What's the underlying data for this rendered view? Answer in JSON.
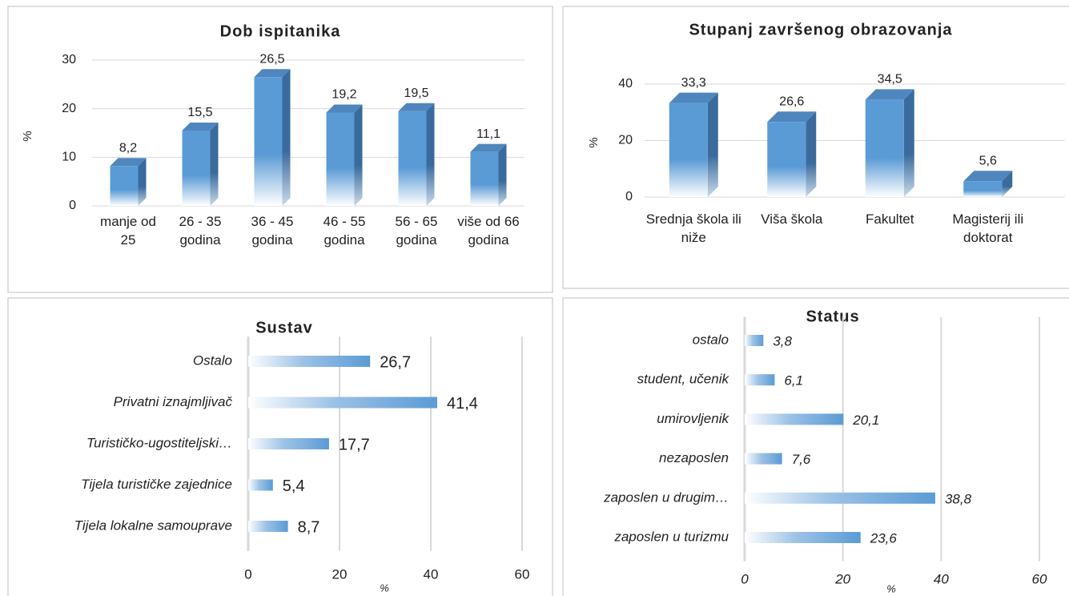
{
  "chart_data": [
    {
      "type": "bar3d",
      "title": "Dob ispitanika",
      "y_label": "%",
      "categories": [
        "manje od 25",
        "26 - 35 godina",
        "36 - 45 godina",
        "46 - 55 godina",
        "56 - 65 godina",
        "više od 66 godina"
      ],
      "values": [
        8.2,
        15.5,
        26.5,
        19.2,
        19.5,
        11.1
      ],
      "value_labels": [
        "8,2",
        "15,5",
        "26,5",
        "19,2",
        "19,5",
        "11,1"
      ],
      "color": "#5b9bd5",
      "ylim": [
        0,
        30
      ],
      "yticks": [
        0,
        10,
        20,
        30
      ],
      "grid": true
    },
    {
      "type": "bar3d",
      "title": "Stupanj završenog obrazovanja",
      "y_label": "%",
      "categories": [
        "Srednja škola ili niže",
        "Viša škola",
        "Fakultet",
        "Magisterij ili doktorat"
      ],
      "values": [
        33.3,
        26.6,
        34.5,
        5.6
      ],
      "value_labels": [
        "33,3",
        "26,6",
        "34,5",
        "5,6"
      ],
      "color": "#5b9bd5",
      "ylim": [
        0,
        40
      ],
      "yticks": [
        0,
        20,
        40
      ],
      "grid": true
    },
    {
      "type": "barh",
      "title": "Sustav",
      "x_label": "%",
      "categories": [
        "Ostalo",
        "Privatni iznajmljivač",
        "Turističko-ugostiteljski…",
        "Tijela turističke zajednice",
        "Tijela lokalne samouprave"
      ],
      "values": [
        26.7,
        41.4,
        17.7,
        5.4,
        8.7
      ],
      "value_labels": [
        "26,7",
        "41,4",
        "17,7",
        "5,4",
        "8,7"
      ],
      "color": "#5b9bd5",
      "xlim": [
        0,
        60
      ],
      "xticks": [
        0,
        20,
        40,
        60
      ],
      "grid": true
    },
    {
      "type": "barh",
      "title": "Status",
      "x_label": "%",
      "categories": [
        "ostalo",
        "student, učenik",
        "umirovljenik",
        "nezaposlen",
        "zaposlen u drugim…",
        "zaposlen u turizmu"
      ],
      "values": [
        3.8,
        6.1,
        20.1,
        7.6,
        38.8,
        23.6
      ],
      "value_labels": [
        "3,8",
        "6,1",
        "20,1",
        "7,6",
        "38,8",
        "23,6"
      ],
      "color": "#5b9bd5",
      "xlim": [
        0,
        60
      ],
      "xticks": [
        0,
        20,
        40,
        60
      ],
      "grid": true
    }
  ]
}
